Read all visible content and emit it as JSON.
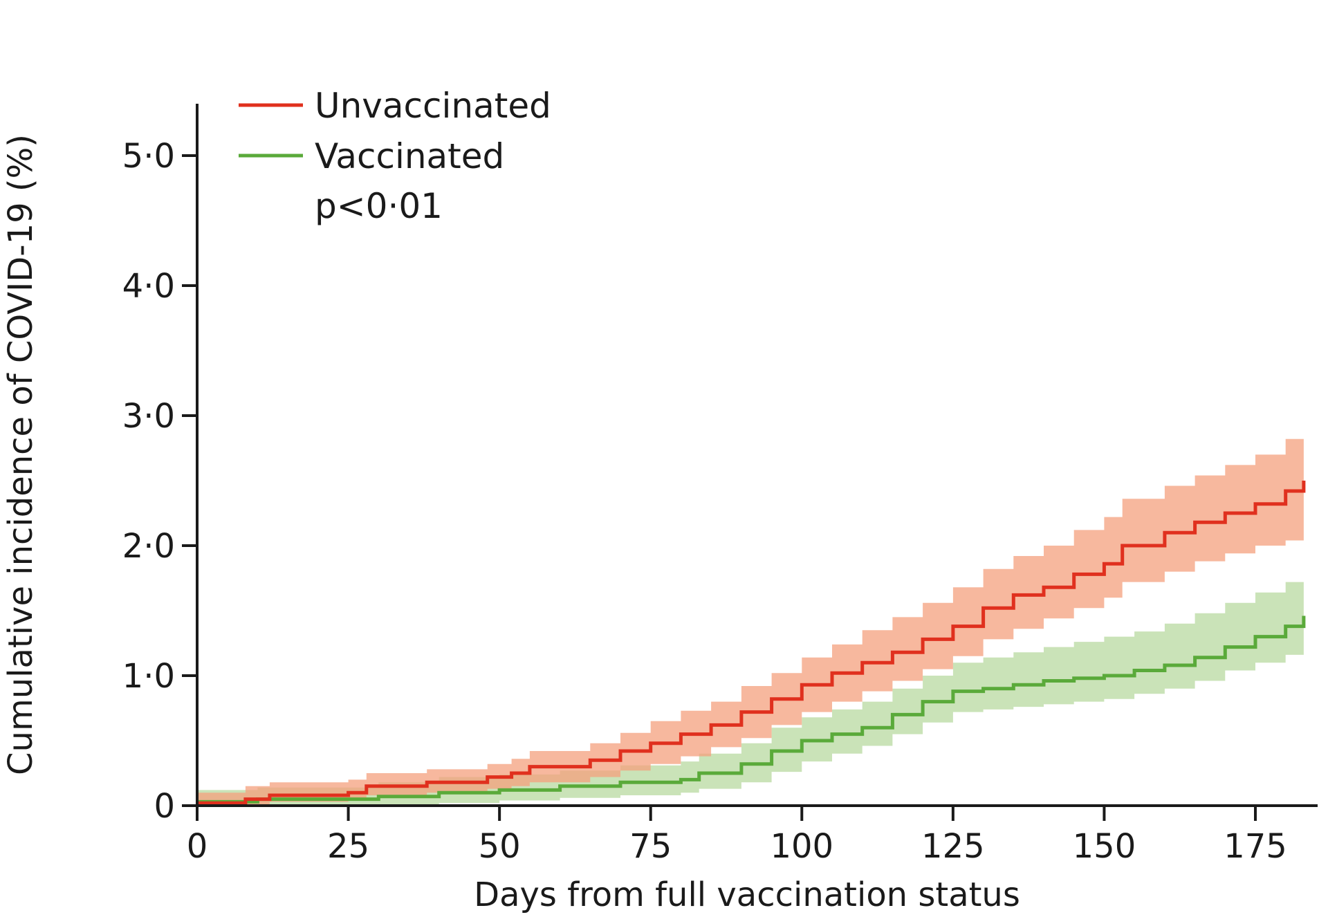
{
  "chart_data": {
    "type": "line",
    "title": "",
    "xlabel": "Days from full vaccination status",
    "ylabel": "Cumulative incidence of COVID-19 (%)",
    "xlim": [
      0,
      185
    ],
    "ylim": [
      0,
      5.4
    ],
    "x_ticks": [
      {
        "value": 0,
        "label": "0"
      },
      {
        "value": 25,
        "label": "25"
      },
      {
        "value": 50,
        "label": "50"
      },
      {
        "value": 75,
        "label": "75"
      },
      {
        "value": 100,
        "label": "100"
      },
      {
        "value": 125,
        "label": "125"
      },
      {
        "value": 150,
        "label": "150"
      },
      {
        "value": 175,
        "label": "175"
      }
    ],
    "y_ticks": [
      {
        "value": 0,
        "label": "0"
      },
      {
        "value": 1,
        "label": "1·0"
      },
      {
        "value": 2,
        "label": "2·0"
      },
      {
        "value": 3,
        "label": "3·0"
      },
      {
        "value": 4,
        "label": "4·0"
      },
      {
        "value": 5,
        "label": "5·0"
      }
    ],
    "legend_position": "top-left",
    "annotation": "p<0·01",
    "series": [
      {
        "name": "Unvaccinated",
        "color": "#e0301e",
        "band_color": "#f4a07e",
        "x": [
          0,
          8,
          12,
          25,
          28,
          38,
          48,
          52,
          55,
          65,
          70,
          75,
          80,
          85,
          90,
          95,
          100,
          105,
          110,
          115,
          120,
          125,
          130,
          135,
          140,
          145,
          150,
          153,
          160,
          165,
          170,
          175,
          180,
          183
        ],
        "y": [
          0.02,
          0.05,
          0.08,
          0.1,
          0.15,
          0.18,
          0.22,
          0.25,
          0.3,
          0.35,
          0.42,
          0.48,
          0.55,
          0.62,
          0.72,
          0.82,
          0.93,
          1.02,
          1.1,
          1.18,
          1.28,
          1.38,
          1.52,
          1.62,
          1.68,
          1.78,
          1.86,
          2.0,
          2.1,
          2.18,
          2.25,
          2.32,
          2.42,
          2.5
        ],
        "lower": [
          0.0,
          0.01,
          0.03,
          0.05,
          0.08,
          0.1,
          0.13,
          0.15,
          0.18,
          0.22,
          0.27,
          0.32,
          0.38,
          0.45,
          0.52,
          0.62,
          0.72,
          0.8,
          0.88,
          0.96,
          1.05,
          1.15,
          1.28,
          1.36,
          1.44,
          1.52,
          1.6,
          1.72,
          1.8,
          1.88,
          1.94,
          2.0,
          2.04,
          2.04
        ],
        "upper": [
          0.1,
          0.15,
          0.18,
          0.2,
          0.25,
          0.28,
          0.32,
          0.36,
          0.42,
          0.48,
          0.56,
          0.65,
          0.73,
          0.8,
          0.92,
          1.02,
          1.14,
          1.24,
          1.35,
          1.45,
          1.56,
          1.68,
          1.82,
          1.92,
          2.0,
          2.12,
          2.22,
          2.36,
          2.46,
          2.54,
          2.62,
          2.7,
          2.82,
          2.95
        ]
      },
      {
        "name": "Vaccinated",
        "color": "#5aaa3a",
        "band_color": "#b8d9a0",
        "x": [
          0,
          10,
          30,
          40,
          50,
          60,
          70,
          80,
          83,
          90,
          95,
          100,
          105,
          110,
          115,
          120,
          125,
          130,
          135,
          140,
          145,
          150,
          155,
          160,
          165,
          170,
          175,
          180,
          183
        ],
        "y": [
          0.03,
          0.05,
          0.07,
          0.1,
          0.12,
          0.15,
          0.18,
          0.2,
          0.25,
          0.32,
          0.42,
          0.5,
          0.55,
          0.6,
          0.7,
          0.8,
          0.88,
          0.9,
          0.93,
          0.96,
          0.98,
          1.0,
          1.04,
          1.08,
          1.14,
          1.22,
          1.3,
          1.38,
          1.46
        ],
        "lower": [
          0.0,
          0.0,
          0.01,
          0.02,
          0.04,
          0.06,
          0.08,
          0.1,
          0.13,
          0.18,
          0.26,
          0.34,
          0.4,
          0.46,
          0.55,
          0.64,
          0.72,
          0.74,
          0.76,
          0.78,
          0.8,
          0.82,
          0.86,
          0.9,
          0.96,
          1.04,
          1.1,
          1.16,
          1.16
        ],
        "upper": [
          0.12,
          0.14,
          0.18,
          0.22,
          0.24,
          0.27,
          0.31,
          0.34,
          0.4,
          0.48,
          0.6,
          0.68,
          0.74,
          0.8,
          0.9,
          1.0,
          1.1,
          1.14,
          1.18,
          1.22,
          1.26,
          1.3,
          1.34,
          1.4,
          1.48,
          1.56,
          1.64,
          1.72,
          1.8
        ]
      }
    ]
  }
}
